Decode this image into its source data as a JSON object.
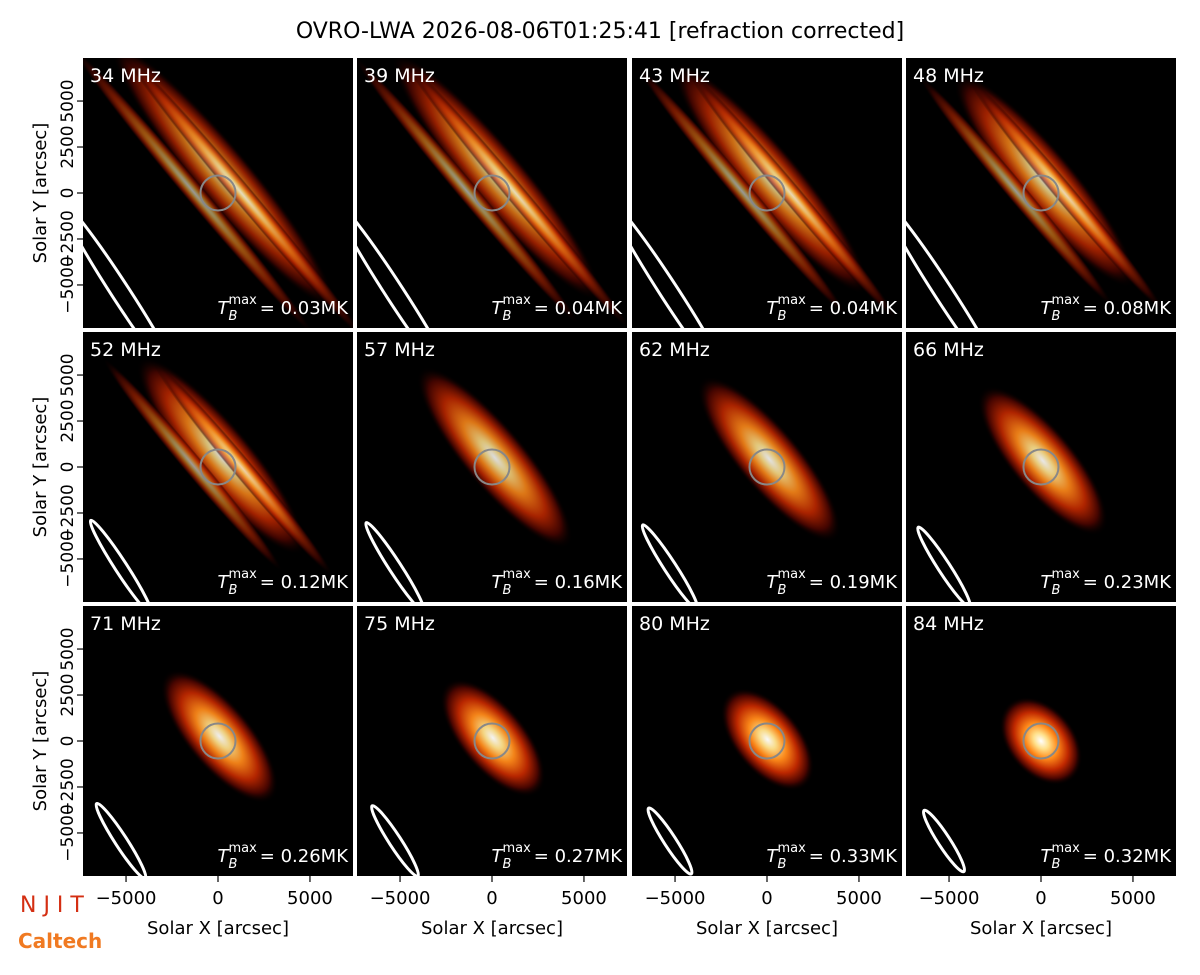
{
  "title": "OVRO-LWA 2026-08-06T01:25:41 [refraction corrected]",
  "axes": {
    "xlabel": "Solar X [arcsec]",
    "ylabel": "Solar Y [arcsec]",
    "xlim": [
      -7340,
      7340
    ],
    "ylim": [
      -7340,
      7340
    ],
    "xticks": [
      {
        "value": -5000,
        "label": "−5000"
      },
      0,
      5000
    ],
    "yticks": [
      {
        "value": -5000,
        "label": "−5000"
      },
      {
        "value": -2500,
        "label": "−2500"
      },
      0,
      2500,
      5000
    ]
  },
  "tb_symbol": {
    "base": "T",
    "sub": "B",
    "sup": "max"
  },
  "logos": [
    "N J I T",
    "Caltech"
  ],
  "chart_data": [
    {
      "type": "image",
      "label": "34 MHz",
      "tmax_label": "= 0.03MK"
    },
    {
      "type": "image",
      "label": "39 MHz",
      "tmax_label": "= 0.04MK"
    },
    {
      "type": "image",
      "label": "43 MHz",
      "tmax_label": "= 0.04MK"
    },
    {
      "type": "image",
      "label": "48 MHz",
      "tmax_label": "= 0.08MK"
    },
    {
      "type": "image",
      "label": "52 MHz",
      "tmax_label": "= 0.12MK"
    },
    {
      "type": "image",
      "label": "57 MHz",
      "tmax_label": "= 0.16MK"
    },
    {
      "type": "image",
      "label": "62 MHz",
      "tmax_label": "= 0.19MK"
    },
    {
      "type": "image",
      "label": "66 MHz",
      "tmax_label": "= 0.23MK"
    },
    {
      "type": "image",
      "label": "71 MHz",
      "tmax_label": "= 0.26MK"
    },
    {
      "type": "image",
      "label": "75 MHz",
      "tmax_label": "= 0.27MK"
    },
    {
      "type": "image",
      "label": "80 MHz",
      "tmax_label": "= 0.33MK"
    },
    {
      "type": "image",
      "label": "84 MHz",
      "tmax_label": "= 0.32MK"
    }
  ]
}
